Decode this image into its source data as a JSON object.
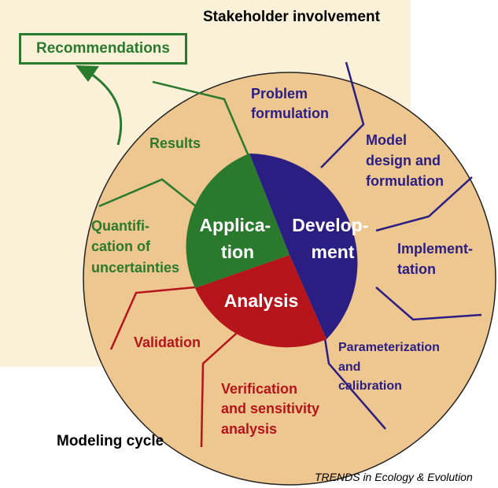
{
  "header": {
    "stakeholder_label": "Stakeholder involvement",
    "recommendations_label": "Recommendations"
  },
  "footer": {
    "modeling_cycle_label": "Modeling cycle",
    "credit": "TRENDS in Ecology & Evolution"
  },
  "colors": {
    "background_panel": "#fbf1d9",
    "outer_circle": "#eec68f",
    "application": "#2a7a2e",
    "development": "#2b1e83",
    "analysis": "#b5141a"
  },
  "center": {
    "application_lines": [
      "Applica-",
      "tion"
    ],
    "development_lines": [
      "Develop-",
      "ment"
    ],
    "analysis_lines": [
      "Analysis"
    ]
  },
  "steps": {
    "problem_formulation": [
      "Problem",
      "formulation"
    ],
    "model_design": [
      "Model",
      "design and",
      "formulation"
    ],
    "implementation": [
      "Implement-",
      "tation"
    ],
    "parameterization": [
      "Parameterization",
      "and",
      "calibration"
    ],
    "verification": [
      "Verification",
      "and sensitivity",
      "analysis"
    ],
    "validation": [
      "Validation"
    ],
    "quantification": [
      "Quantifi-",
      "cation of",
      "uncertainties"
    ],
    "results": [
      "Results"
    ]
  }
}
